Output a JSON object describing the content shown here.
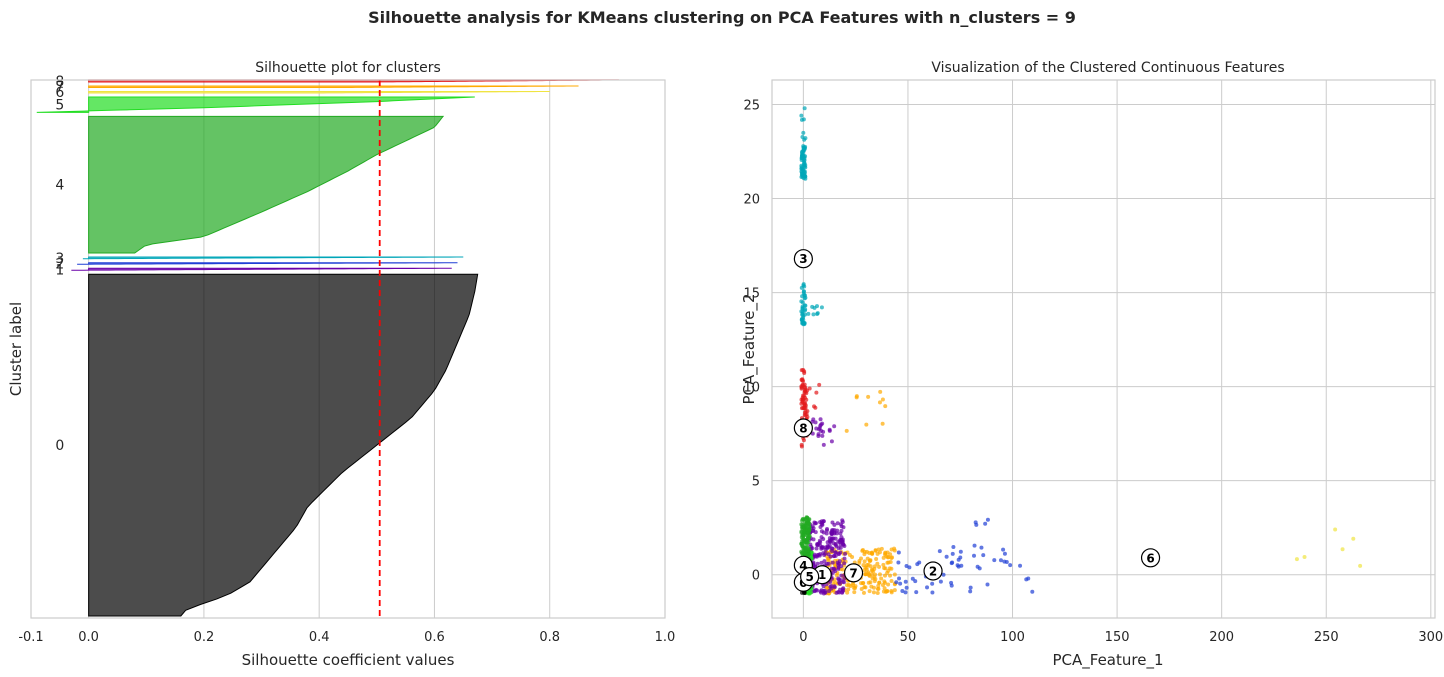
{
  "suptitle": "Silhouette analysis for KMeans clustering on PCA Features with n_clusters = 9",
  "chart_data": [
    {
      "type": "area",
      "subtype": "silhouette",
      "title": "Silhouette plot for clusters",
      "xlabel": "Silhouette coefficient values",
      "ylabel": "Cluster label",
      "xlim": [
        -0.1,
        1.0
      ],
      "xticks": [
        -0.1,
        0.0,
        0.2,
        0.4,
        0.6,
        0.8,
        1.0
      ],
      "xtick_labels": [
        "-0.1",
        "0.0",
        "0.2",
        "0.4",
        "0.6",
        "0.8",
        "1.0"
      ],
      "average_silhouette": 0.505,
      "grid": true,
      "clusters": [
        {
          "label": "0",
          "color": "#000000",
          "size": 1000,
          "profile": [
            [
              0.0,
              0.16
            ],
            [
              0.02,
              0.17
            ],
            [
              0.06,
              0.24
            ],
            [
              0.1,
              0.28
            ],
            [
              0.18,
              0.32
            ],
            [
              0.26,
              0.36
            ],
            [
              0.32,
              0.38
            ],
            [
              0.42,
              0.44
            ],
            [
              0.5,
              0.5
            ],
            [
              0.58,
              0.56
            ],
            [
              0.66,
              0.6
            ],
            [
              0.72,
              0.62
            ],
            [
              0.8,
              0.64
            ],
            [
              0.88,
              0.66
            ],
            [
              0.95,
              0.67
            ],
            [
              1.0,
              0.675
            ]
          ]
        },
        {
          "label": "1",
          "color": "#6a00a8",
          "size": 6,
          "profile": [
            [
              0.0,
              -0.03
            ],
            [
              0.5,
              0.3
            ],
            [
              1.0,
              0.63
            ]
          ]
        },
        {
          "label": "2",
          "color": "#1f3fd6",
          "size": 4,
          "profile": [
            [
              0.0,
              -0.02
            ],
            [
              0.5,
              0.3
            ],
            [
              1.0,
              0.64
            ]
          ]
        },
        {
          "label": "3",
          "color": "#00a6b8",
          "size": 5,
          "profile": [
            [
              0.0,
              -0.01
            ],
            [
              0.5,
              0.3
            ],
            [
              1.0,
              0.65
            ]
          ]
        },
        {
          "label": "4",
          "color": "#22aa22",
          "size": 400,
          "profile": [
            [
              0.0,
              0.08
            ],
            [
              0.06,
              0.1
            ],
            [
              0.12,
              0.2
            ],
            [
              0.3,
              0.3
            ],
            [
              0.45,
              0.38
            ],
            [
              0.6,
              0.45
            ],
            [
              0.72,
              0.5
            ],
            [
              0.84,
              0.56
            ],
            [
              0.92,
              0.6
            ],
            [
              1.0,
              0.615
            ]
          ]
        },
        {
          "label": "5",
          "color": "#22dd22",
          "size": 45,
          "profile": [
            [
              0.0,
              -0.09
            ],
            [
              0.3,
              0.2
            ],
            [
              0.7,
              0.5
            ],
            [
              1.0,
              0.67
            ]
          ]
        },
        {
          "label": "6",
          "color": "#f0e442",
          "size": 3,
          "profile": [
            [
              0.0,
              0.4
            ],
            [
              1.0,
              0.8
            ]
          ]
        },
        {
          "label": "7",
          "color": "#ffaa00",
          "size": 3,
          "profile": [
            [
              0.0,
              0.45
            ],
            [
              1.0,
              0.85
            ]
          ]
        },
        {
          "label": "8",
          "color": "#e31a1c",
          "size": 6,
          "profile": [
            [
              0.0,
              0.5
            ],
            [
              1.0,
              0.92
            ]
          ]
        }
      ]
    },
    {
      "type": "scatter",
      "title": "Visualization of the Clustered Continuous Features",
      "xlabel": "PCA_Feature_1",
      "ylabel": "PCA_Feature_2",
      "xlim": [
        -15,
        302
      ],
      "ylim": [
        -2.3,
        26.3
      ],
      "xticks": [
        0,
        50,
        100,
        150,
        200,
        250,
        300
      ],
      "yticks": [
        0,
        5,
        10,
        15,
        20,
        25
      ],
      "grid": true,
      "clusters": [
        {
          "label": "0",
          "color": "#000000",
          "center": [
            0,
            -0.4
          ]
        },
        {
          "label": "1",
          "color": "#6a00a8",
          "center": [
            9,
            0
          ]
        },
        {
          "label": "2",
          "color": "#1f3fd6",
          "center": [
            62,
            0.2
          ]
        },
        {
          "label": "3",
          "color": "#00a6b8",
          "center": [
            0,
            16.8
          ]
        },
        {
          "label": "4",
          "color": "#22aa22",
          "center": [
            0,
            0.5
          ]
        },
        {
          "label": "5",
          "color": "#22dd22",
          "center": [
            3,
            -0.1
          ]
        },
        {
          "label": "6",
          "color": "#f0e442",
          "center": [
            166,
            0.9
          ]
        },
        {
          "label": "7",
          "color": "#ffaa00",
          "center": [
            24,
            0.1
          ]
        },
        {
          "label": "8",
          "color": "#e31a1c",
          "center": [
            0,
            7.8
          ]
        }
      ]
    }
  ]
}
